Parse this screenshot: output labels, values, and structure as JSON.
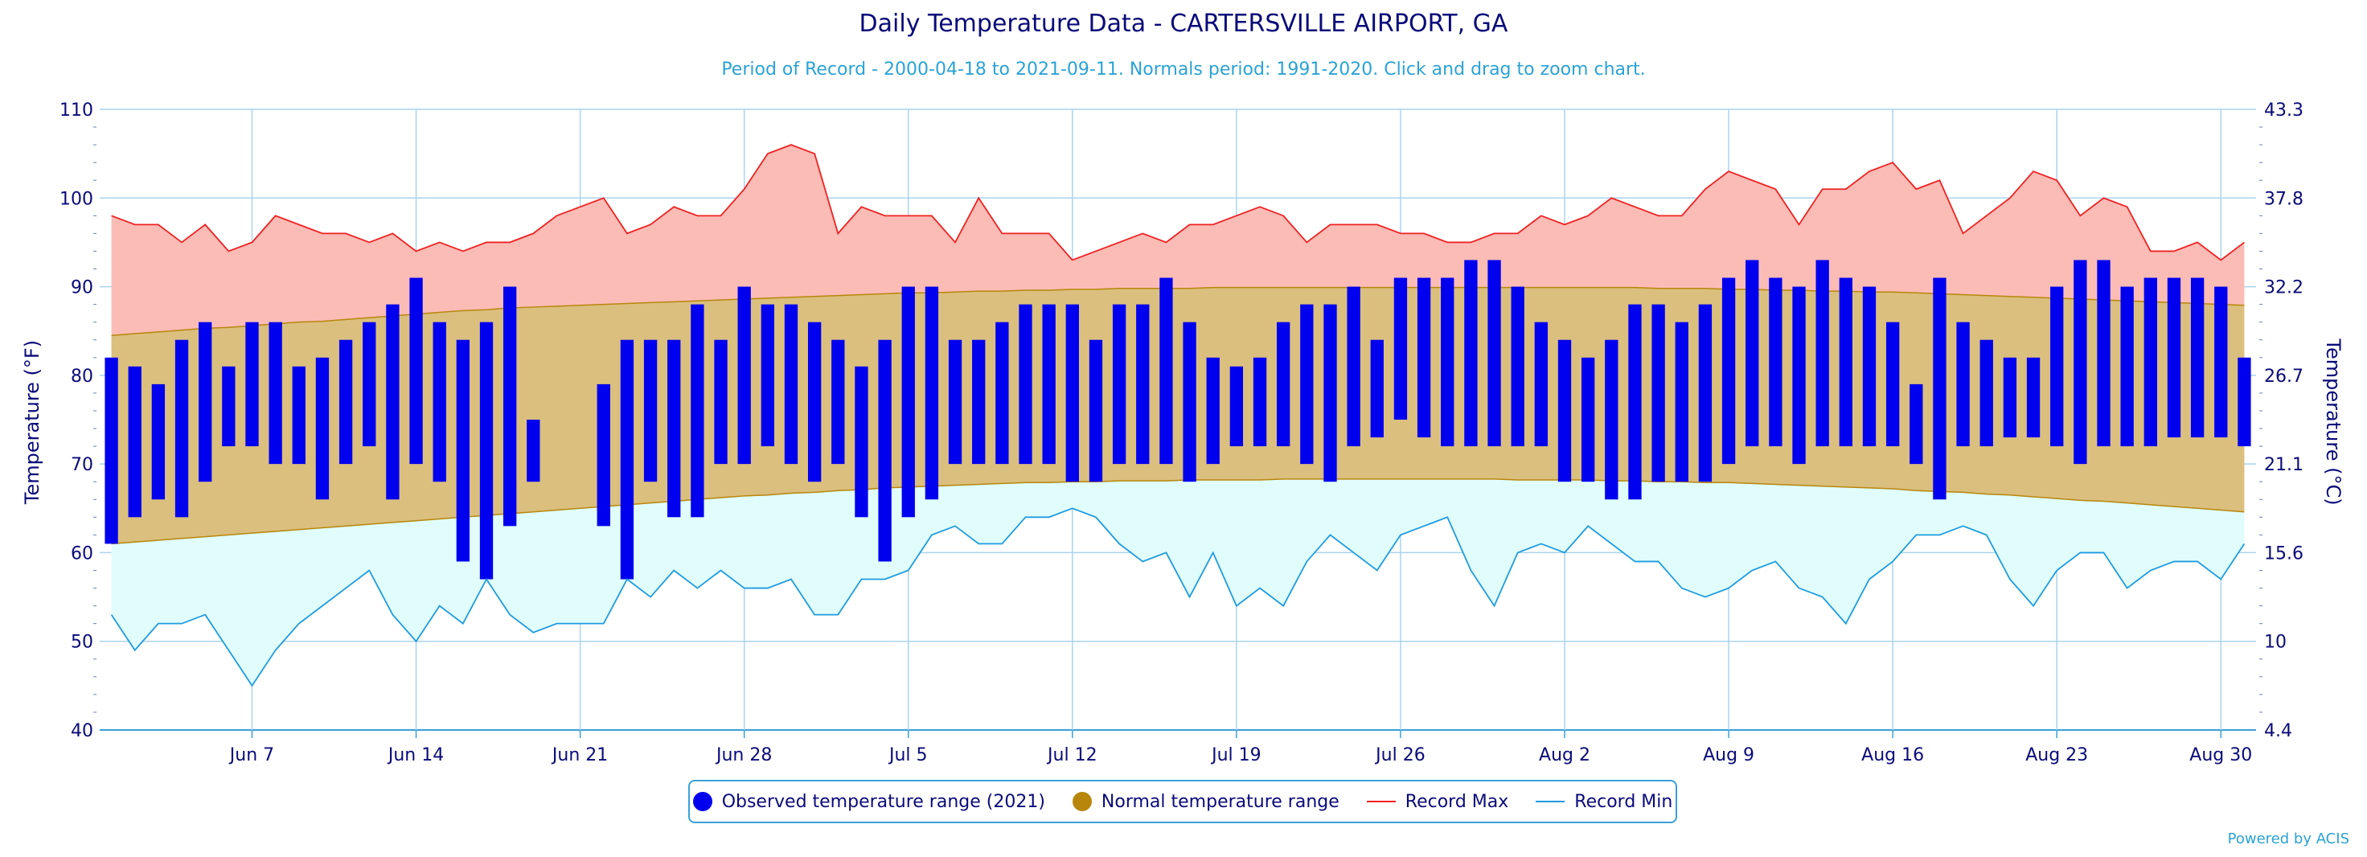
{
  "title": "Daily Temperature Data - CARTERSVILLE AIRPORT, GA",
  "subtitle": "Period of Record - 2000-04-18 to 2021-09-11. Normals period: 1991-2020. Click and drag to zoom chart.",
  "credit": "Powered by ACIS",
  "colors": {
    "observed": "#0000ee",
    "normal_fill": "#dbbf7e",
    "normal_line": "#b8860b",
    "record_max_line": "#ee2222",
    "record_max_fill": "#fbbcb6",
    "record_min_line": "#1e9be0",
    "record_min_fill": "#e0fdfb",
    "grid": "#a9d4ee"
  },
  "legend": {
    "observed": "Observed temperature range (2021)",
    "normal": "Normal temperature range",
    "record_max": "Record Max",
    "record_min": "Record Min"
  },
  "chart_data": {
    "type": "bar",
    "start_date": "2021-06-01",
    "x_tick_labels": [
      "Jun 7",
      "Jun 14",
      "Jun 21",
      "Jun 28",
      "Jul 5",
      "Jul 12",
      "Jul 19",
      "Jul 26",
      "Aug 2",
      "Aug 9",
      "Aug 16",
      "Aug 23",
      "Aug 30"
    ],
    "ylabel": "Temperature (°F)",
    "y2label": "Temperature (°C)",
    "ylim": [
      40,
      110
    ],
    "y_ticks": [
      40,
      50,
      60,
      70,
      80,
      90,
      100,
      110
    ],
    "y2_ticks": [
      "4.4",
      "10",
      "15.6",
      "21.1",
      "26.7",
      "32.2",
      "37.8",
      "43.3"
    ],
    "observed_high": [
      82,
      81,
      79,
      84,
      86,
      81,
      86,
      86,
      81,
      82,
      84,
      86,
      88,
      91,
      86,
      84,
      86,
      90,
      75,
      null,
      null,
      79,
      84,
      84,
      84,
      88,
      84,
      90,
      88,
      88,
      86,
      84,
      81,
      84,
      90,
      90,
      84,
      84,
      86,
      88,
      88,
      88,
      84,
      88,
      88,
      91,
      86,
      82,
      81,
      82,
      86,
      88,
      88,
      90,
      84,
      91,
      91,
      91,
      93,
      93,
      90,
      86,
      84,
      82,
      84,
      88,
      88,
      86,
      88,
      91,
      93,
      91,
      90,
      93,
      91,
      90,
      86,
      79,
      91,
      86,
      84,
      82,
      82,
      90,
      93,
      93,
      90,
      91,
      91,
      91,
      90,
      82
    ],
    "observed_low": [
      61,
      64,
      66,
      64,
      68,
      72,
      72,
      70,
      70,
      66,
      70,
      72,
      66,
      70,
      68,
      59,
      57,
      63,
      68,
      null,
      null,
      63,
      57,
      68,
      64,
      64,
      70,
      70,
      72,
      70,
      68,
      70,
      64,
      59,
      64,
      66,
      70,
      70,
      70,
      70,
      70,
      68,
      68,
      70,
      70,
      70,
      68,
      70,
      72,
      72,
      72,
      70,
      68,
      72,
      73,
      75,
      73,
      72,
      72,
      72,
      72,
      72,
      68,
      68,
      66,
      66,
      68,
      68,
      68,
      70,
      72,
      72,
      70,
      72,
      72,
      72,
      72,
      70,
      66,
      72,
      72,
      73,
      73,
      72,
      70,
      72,
      72,
      72,
      73,
      73,
      73,
      72
    ],
    "normal_high": [
      84.5,
      84.7,
      84.9,
      85.1,
      85.3,
      85.4,
      85.6,
      85.8,
      86.0,
      86.1,
      86.3,
      86.5,
      86.7,
      86.9,
      87.1,
      87.3,
      87.4,
      87.6,
      87.7,
      87.8,
      87.9,
      88.0,
      88.1,
      88.2,
      88.3,
      88.4,
      88.5,
      88.6,
      88.7,
      88.8,
      88.9,
      89.0,
      89.1,
      89.2,
      89.3,
      89.3,
      89.4,
      89.5,
      89.5,
      89.6,
      89.6,
      89.7,
      89.7,
      89.8,
      89.8,
      89.8,
      89.8,
      89.9,
      89.9,
      89.9,
      89.9,
      89.9,
      89.9,
      89.9,
      89.9,
      89.9,
      89.9,
      89.9,
      89.9,
      89.9,
      89.9,
      89.9,
      89.9,
      89.9,
      89.9,
      89.9,
      89.8,
      89.8,
      89.8,
      89.7,
      89.7,
      89.6,
      89.6,
      89.5,
      89.5,
      89.4,
      89.4,
      89.3,
      89.2,
      89.1,
      89.0,
      88.9,
      88.8,
      88.7,
      88.6,
      88.5,
      88.4,
      88.3,
      88.2,
      88.1,
      88.0,
      87.9
    ],
    "normal_low": [
      61.0,
      61.2,
      61.4,
      61.6,
      61.8,
      62.0,
      62.2,
      62.4,
      62.6,
      62.8,
      63.0,
      63.2,
      63.4,
      63.6,
      63.8,
      64.0,
      64.2,
      64.4,
      64.6,
      64.8,
      65.0,
      65.2,
      65.4,
      65.6,
      65.8,
      66.0,
      66.2,
      66.4,
      66.5,
      66.7,
      66.8,
      67.0,
      67.1,
      67.3,
      67.4,
      67.5,
      67.6,
      67.7,
      67.8,
      67.9,
      67.9,
      68.0,
      68.0,
      68.1,
      68.1,
      68.1,
      68.2,
      68.2,
      68.2,
      68.2,
      68.3,
      68.3,
      68.3,
      68.3,
      68.3,
      68.3,
      68.3,
      68.3,
      68.3,
      68.3,
      68.2,
      68.2,
      68.2,
      68.2,
      68.1,
      68.1,
      68.0,
      68.0,
      67.9,
      67.9,
      67.8,
      67.7,
      67.6,
      67.5,
      67.4,
      67.3,
      67.2,
      67.0,
      66.9,
      66.8,
      66.6,
      66.5,
      66.3,
      66.1,
      65.9,
      65.8,
      65.6,
      65.4,
      65.2,
      65.0,
      64.8,
      64.6
    ],
    "record_max": [
      98,
      97,
      97,
      95,
      97,
      94,
      95,
      98,
      97,
      96,
      96,
      95,
      96,
      94,
      95,
      94,
      95,
      95,
      96,
      98,
      99,
      100,
      96,
      97,
      99,
      98,
      98,
      101,
      105,
      106,
      105,
      96,
      99,
      98,
      98,
      98,
      95,
      100,
      96,
      96,
      96,
      93,
      94,
      95,
      96,
      95,
      97,
      97,
      98,
      99,
      98,
      95,
      97,
      97,
      97,
      96,
      96,
      95,
      95,
      96,
      96,
      98,
      97,
      98,
      100,
      99,
      98,
      98,
      101,
      103,
      102,
      101,
      97,
      101,
      101,
      103,
      104,
      101,
      102,
      96,
      98,
      100,
      103,
      102,
      98,
      100,
      99,
      94,
      94,
      95,
      93,
      95
    ],
    "record_min": [
      53,
      49,
      52,
      52,
      53,
      49,
      45,
      49,
      52,
      54,
      56,
      58,
      53,
      50,
      54,
      52,
      57,
      53,
      51,
      52,
      52,
      52,
      57,
      55,
      58,
      56,
      58,
      56,
      56,
      57,
      53,
      53,
      57,
      57,
      58,
      62,
      63,
      61,
      61,
      64,
      64,
      65,
      64,
      61,
      59,
      60,
      55,
      60,
      54,
      56,
      54,
      59,
      62,
      60,
      58,
      62,
      63,
      64,
      58,
      54,
      60,
      61,
      60,
      63,
      61,
      59,
      59,
      56,
      55,
      56,
      58,
      59,
      56,
      55,
      52,
      57,
      59,
      62,
      62,
      63,
      62,
      57,
      54,
      58,
      60,
      60,
      56,
      58,
      59,
      59,
      57,
      61
    ]
  }
}
